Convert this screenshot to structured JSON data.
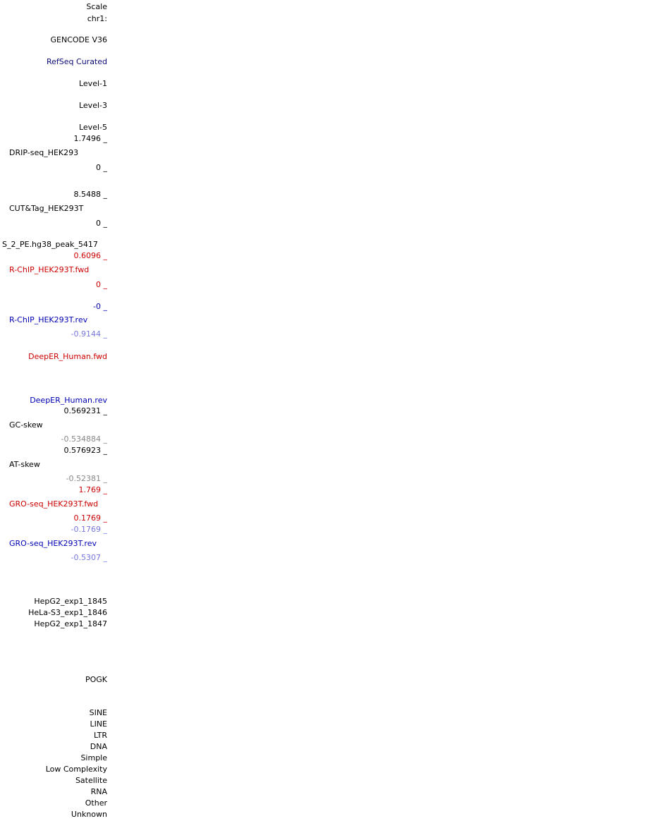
{
  "labels": {
    "scale": "Scale",
    "chrom": "chr1:",
    "gencode": "GENCODE V36",
    "refseq": "RefSeq Curated",
    "level1": "Level-1",
    "level3": "Level-3",
    "level5": "Level-5",
    "drip_max": "1.7496 _",
    "drip_name": "DRIP-seq_HEK293",
    "drip_min": "0 _",
    "cut_max": "8.5488 _",
    "cut_name": "CUT&Tag_HEK293T",
    "cut_min": "0 _",
    "peak_name": "S_2_PE.hg38_peak_5417",
    "rchip_fwd_max": "0.6096 _",
    "rchip_fwd_name": "R-ChIP_HEK293T.fwd",
    "rchip_fwd_min": "0 _",
    "rchip_rev_max": "-0 _",
    "rchip_rev_name": "R-ChIP_HEK293T.rev",
    "rchip_rev_min": "-0.9144 _",
    "deeper_fwd": "DeepER_Human.fwd",
    "deeper_rev": "DeepER_Human.rev",
    "gc_max": "0.569231 _",
    "gc_name": "GC-skew",
    "gc_min": "-0.534884 _",
    "at_max": "0.576923 _",
    "at_name": "AT-skew",
    "at_min": "-0.52381 _",
    "gro_fwd_max": "1.769 _",
    "gro_fwd_name": "GRO-seq_HEK293T.fwd",
    "gro_fwd_min": "0.1769 _",
    "gro_rev_max": "-0.1769 _",
    "gro_rev_name": "GRO-seq_HEK293T.rev",
    "gro_rev_min": "-0.5307 _",
    "hepg2_1845": "HepG2_exp1_1845",
    "hela_1846": "HeLa-S3_exp1_1846",
    "hepg2_1847": "HepG2_exp1_1847",
    "pogk": "POGK",
    "sine": "SINE",
    "line": "LINE",
    "ltr": "LTR",
    "dna": "DNA",
    "simple": "Simple",
    "low_complexity": "Low Complexity",
    "satellite": "Satellite",
    "rna": "RNA",
    "other": "Other",
    "unknown": "Unknown"
  },
  "colors": {
    "black": "#000000",
    "navy": "#0c0c78",
    "red": "#cc0000",
    "blue": "#0000b4",
    "lightblue": "#7777dd",
    "gray": "#888888"
  }
}
